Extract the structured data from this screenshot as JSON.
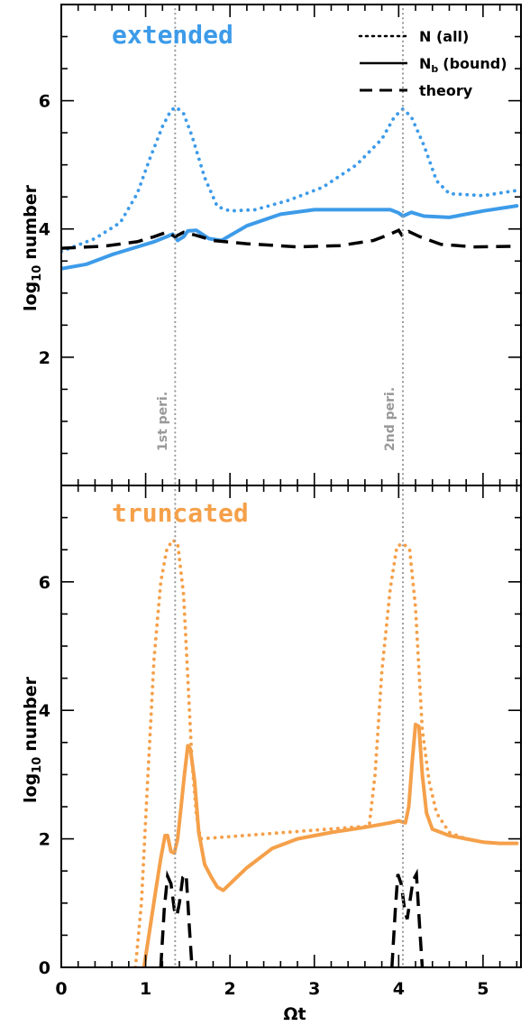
{
  "colors": {
    "extended": "#3d9be9",
    "truncated": "#f5a04a",
    "theory": "#000000",
    "pericenter_line": "#999999"
  },
  "legend": {
    "all": "N (all)",
    "bound_prefix": "N",
    "bound_sub": "b",
    "bound_suffix": "(bound)",
    "theory": "theory"
  },
  "chart_data": [
    {
      "type": "line",
      "panel_title": "extended",
      "xlabel": "",
      "ylabel_main": "log",
      "ylabel_sub": "10",
      "ylabel_rest": "number",
      "xlim": [
        0,
        5.45
      ],
      "ylim": [
        0,
        7.5
      ],
      "x_ticks": [
        0,
        1,
        2,
        3,
        4,
        5
      ],
      "y_ticks": [
        2,
        4,
        6
      ],
      "y_tick_labels": [
        "2",
        "4",
        "6"
      ],
      "annotations": [
        {
          "x": 1.35,
          "text": "1st peri."
        },
        {
          "x": 4.05,
          "text": "2nd peri."
        }
      ],
      "series": [
        {
          "key": "all",
          "style": "dotted",
          "x": [
            0.0,
            0.4,
            0.7,
            0.9,
            1.05,
            1.2,
            1.3,
            1.36,
            1.45,
            1.55,
            1.7,
            1.85,
            2.0,
            2.3,
            2.7,
            3.1,
            3.5,
            3.8,
            3.95,
            4.05,
            4.15,
            4.3,
            4.45,
            4.6,
            5.0,
            5.4
          ],
          "y": [
            3.65,
            3.85,
            4.1,
            4.55,
            5.1,
            5.6,
            5.85,
            5.9,
            5.8,
            5.45,
            4.8,
            4.35,
            4.28,
            4.3,
            4.45,
            4.65,
            5.0,
            5.4,
            5.75,
            5.87,
            5.75,
            5.3,
            4.75,
            4.55,
            4.52,
            4.6
          ]
        },
        {
          "key": "bound",
          "style": "solid",
          "x": [
            0.0,
            0.3,
            0.6,
            0.9,
            1.1,
            1.25,
            1.32,
            1.38,
            1.45,
            1.5,
            1.6,
            1.75,
            1.9,
            2.2,
            2.6,
            3.0,
            3.5,
            3.9,
            4.0,
            4.05,
            4.15,
            4.3,
            4.6,
            5.0,
            5.4
          ],
          "y": [
            3.38,
            3.45,
            3.6,
            3.72,
            3.8,
            3.88,
            3.92,
            3.82,
            3.88,
            3.97,
            3.98,
            3.85,
            3.82,
            4.05,
            4.23,
            4.3,
            4.3,
            4.3,
            4.25,
            4.2,
            4.26,
            4.2,
            4.18,
            4.28,
            4.36
          ]
        },
        {
          "key": "theory",
          "style": "dashed",
          "x": [
            0.0,
            0.5,
            0.9,
            1.1,
            1.25,
            1.35,
            1.45,
            1.6,
            1.8,
            2.2,
            2.8,
            3.3,
            3.7,
            3.9,
            4.0,
            4.05,
            4.12,
            4.25,
            4.5,
            4.9,
            5.4
          ],
          "y": [
            3.7,
            3.73,
            3.8,
            3.88,
            3.95,
            3.88,
            3.95,
            3.9,
            3.82,
            3.77,
            3.72,
            3.74,
            3.82,
            3.92,
            3.98,
            3.88,
            3.96,
            3.88,
            3.76,
            3.72,
            3.73
          ]
        }
      ]
    },
    {
      "type": "line",
      "panel_title": "truncated",
      "xlabel": "Ωt",
      "ylabel_main": "log",
      "ylabel_sub": "10",
      "ylabel_rest": "number",
      "xlim": [
        0,
        5.45
      ],
      "ylim": [
        0,
        7.5
      ],
      "x_ticks": [
        0,
        1,
        2,
        3,
        4,
        5
      ],
      "x_tick_labels": [
        "0",
        "1",
        "2",
        "3",
        "4",
        "5"
      ],
      "y_ticks": [
        0,
        2,
        4,
        6
      ],
      "y_tick_labels": [
        "0",
        "2",
        "4",
        "6"
      ],
      "series": [
        {
          "key": "all",
          "style": "dotted",
          "x": [
            0.88,
            0.95,
            1.02,
            1.1,
            1.18,
            1.25,
            1.32,
            1.38,
            1.45,
            1.5,
            1.55,
            1.6,
            1.65,
            3.65,
            3.72,
            3.8,
            3.9,
            3.98,
            4.05,
            4.13,
            4.2,
            4.28,
            4.36,
            4.45,
            4.6,
            4.8,
            5.0,
            5.2,
            5.4
          ],
          "y": [
            0.0,
            1.0,
            2.8,
            4.8,
            6.0,
            6.5,
            6.65,
            6.6,
            5.8,
            4.5,
            3.2,
            2.4,
            2.0,
            2.2,
            3.0,
            4.6,
            5.9,
            6.55,
            6.6,
            6.5,
            5.6,
            3.7,
            2.9,
            2.4,
            2.1,
            2.0,
            1.95,
            1.93,
            1.93
          ]
        },
        {
          "key": "bound",
          "style": "solid",
          "x": [
            0.98,
            1.05,
            1.12,
            1.18,
            1.23,
            1.26,
            1.3,
            1.34,
            1.38,
            1.42,
            1.46,
            1.5,
            1.53,
            1.58,
            1.63,
            1.7,
            1.78,
            1.85,
            1.92,
            2.0,
            2.2,
            2.5,
            2.8,
            3.2,
            3.6,
            3.9,
            4.0,
            4.08,
            4.12,
            4.16,
            4.2,
            4.24,
            4.28,
            4.33,
            4.4,
            4.6,
            4.8,
            5.0,
            5.2,
            5.4
          ],
          "y": [
            0.0,
            0.6,
            1.2,
            1.7,
            2.05,
            2.05,
            1.8,
            1.78,
            2.0,
            2.5,
            3.0,
            3.45,
            3.4,
            2.9,
            2.1,
            1.6,
            1.4,
            1.25,
            1.2,
            1.3,
            1.55,
            1.85,
            2.0,
            2.1,
            2.18,
            2.25,
            2.28,
            2.25,
            2.5,
            3.2,
            3.78,
            3.75,
            3.0,
            2.4,
            2.15,
            2.05,
            2.0,
            1.95,
            1.93,
            1.93
          ]
        },
        {
          "key": "theory",
          "style": "dashed",
          "segments": [
            {
              "x": [
                1.18,
                1.22,
                1.26,
                1.3,
                1.34,
                1.37,
                1.4,
                1.44,
                1.48,
                1.52,
                1.55
              ],
              "y": [
                0.0,
                0.9,
                1.42,
                1.3,
                0.9,
                0.8,
                1.0,
                1.4,
                1.45,
                0.6,
                0.0
              ]
            },
            {
              "x": [
                3.92,
                3.96,
                3.99,
                4.03,
                4.07,
                4.1,
                4.13,
                4.17,
                4.21,
                4.25,
                4.28
              ],
              "y": [
                0.0,
                0.9,
                1.45,
                1.3,
                0.9,
                0.75,
                1.0,
                1.35,
                1.45,
                0.6,
                0.0
              ]
            }
          ]
        }
      ]
    }
  ]
}
